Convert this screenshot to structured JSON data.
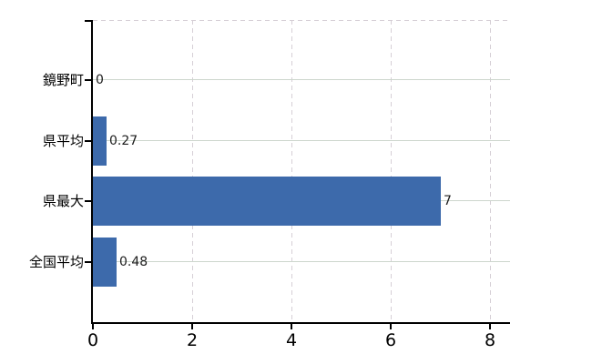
{
  "chart_data": {
    "type": "bar",
    "orientation": "horizontal",
    "title": "",
    "categories": [
      "鏡野町",
      "県平均",
      "県最大",
      "全国平均"
    ],
    "values": [
      0,
      0.27,
      7,
      0.48
    ],
    "value_labels": [
      "0",
      "0.27",
      "7",
      "0.48"
    ],
    "x_ticks": [
      0,
      2,
      4,
      6,
      8
    ],
    "x_tick_labels": [
      "0",
      "2",
      "4",
      "6",
      "8"
    ],
    "xlim": [
      0,
      8.4
    ],
    "grid": true,
    "legend_position": "none",
    "h_gridline_style": "solid",
    "v_gridline_style": "dashed",
    "bar_color": "#3d6aab",
    "h_grid_color": "#cdd6cd",
    "v_grid_color": "#d6cfd6",
    "axis_color": "#000000",
    "label_color": "#000000",
    "value_label_color": "#1c1c1c",
    "background_color": "#ffffff"
  }
}
